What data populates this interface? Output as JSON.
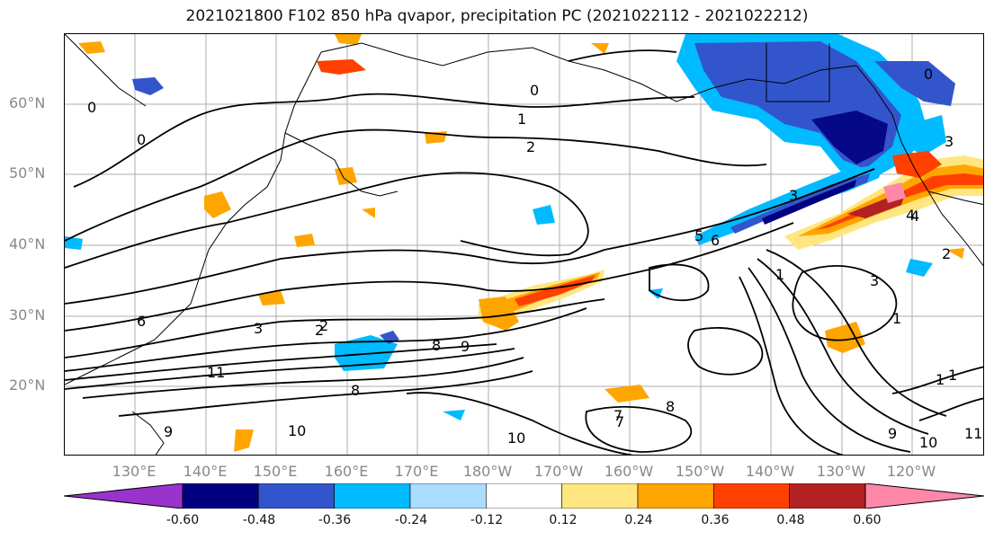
{
  "title": "2021021800 F102 850 hPa qvapor, precipitation PC (2021022112 - 2021022212)",
  "lat_labels": [
    "60°N",
    "50°N",
    "40°N",
    "30°N",
    "20°N"
  ],
  "lon_labels": [
    "130°E",
    "140°E",
    "150°E",
    "160°E",
    "170°E",
    "180°W",
    "170°W",
    "160°W",
    "150°W",
    "140°W",
    "130°W",
    "120°W"
  ],
  "colorbar": {
    "colors": [
      "#9933cc",
      "#000080",
      "#3355cc",
      "#00bbff",
      "#aaddff",
      "#ffffff",
      "#ffe680",
      "#ffa500",
      "#ff4000",
      "#b22222",
      "#ff88aa"
    ],
    "ticks": [
      "-0.60",
      "-0.48",
      "-0.36",
      "-0.24",
      "-0.12",
      "0.12",
      "0.24",
      "0.36",
      "0.48",
      "0.60"
    ]
  },
  "contour_labels": [
    "0",
    "0",
    "0",
    "1",
    "2",
    "3",
    "4",
    "5",
    "6",
    "7",
    "8",
    "9",
    "10",
    "11",
    "1",
    "2",
    "3",
    "6",
    "8",
    "9",
    "10",
    "1",
    "1",
    "2",
    "3",
    "0",
    "3",
    "4",
    "7",
    "8",
    "9",
    "10",
    "11",
    "2",
    "1"
  ]
}
